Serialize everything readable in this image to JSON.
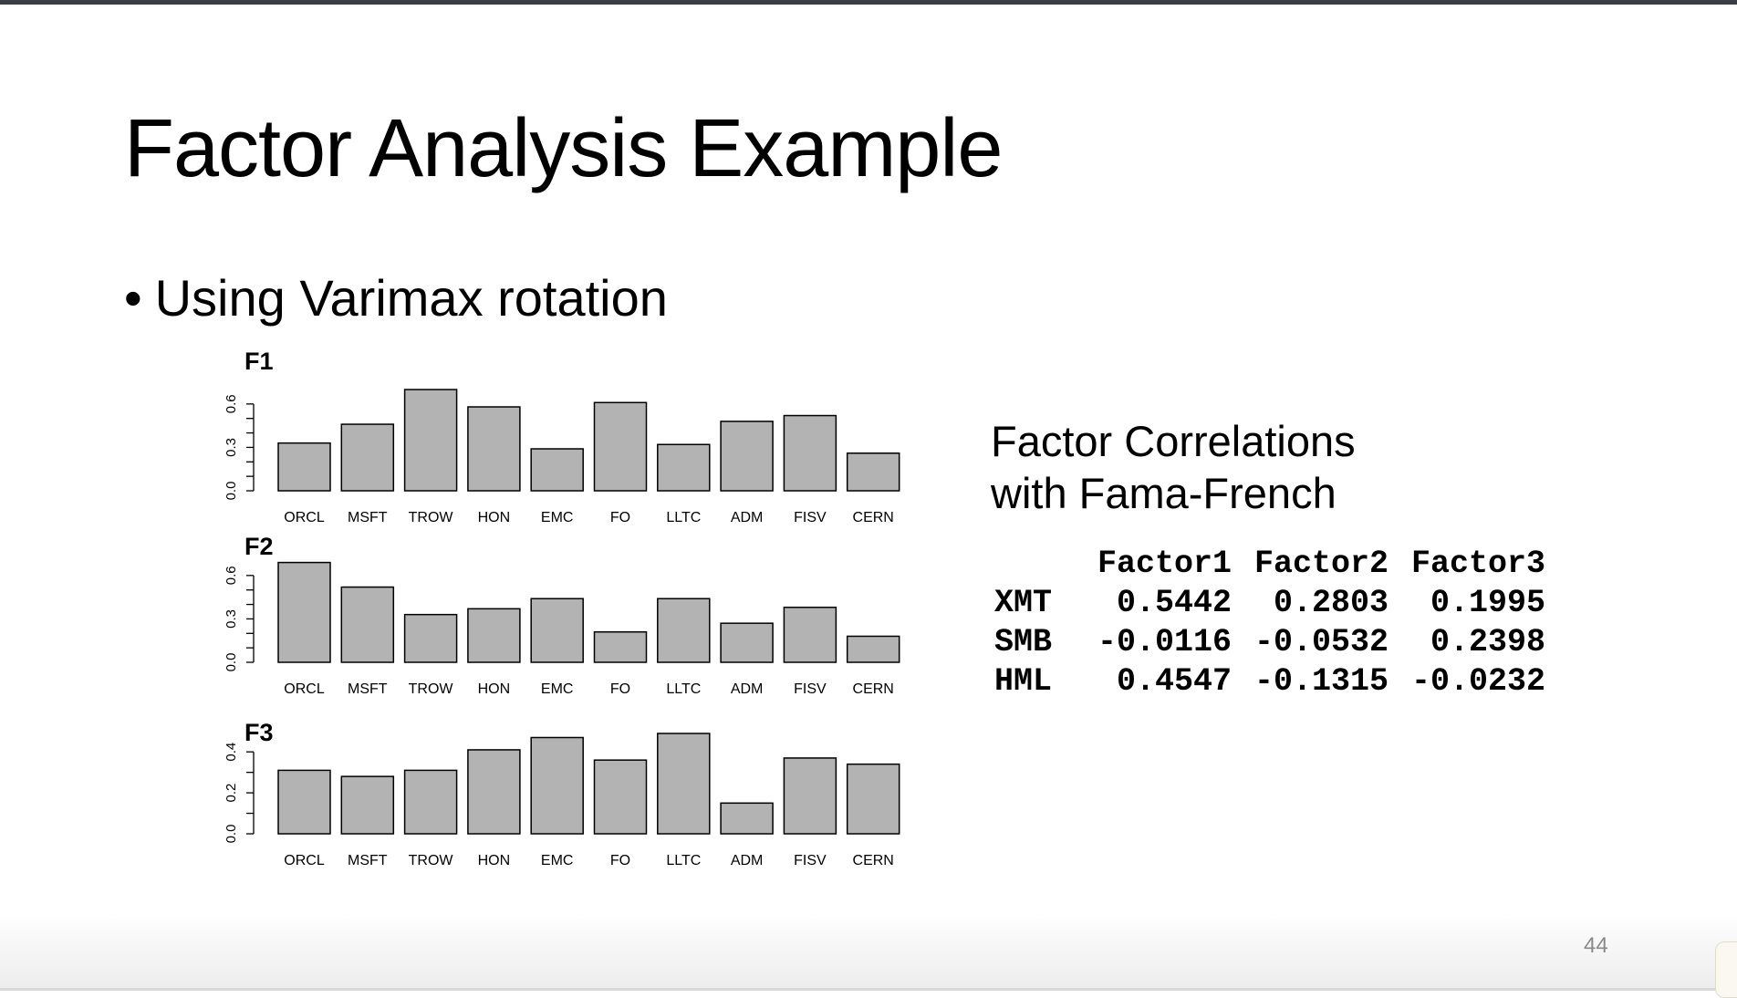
{
  "slide": {
    "title": "Factor Analysis Example",
    "bullet_symbol": "•",
    "bullet": "Using Varimax rotation",
    "page_number": "44"
  },
  "chart_data": [
    {
      "type": "bar",
      "title": "F1",
      "categories": [
        "ORCL",
        "MSFT",
        "TROW",
        "HON",
        "EMC",
        "FO",
        "LLTC",
        "ADM",
        "FISV",
        "CERN"
      ],
      "values": [
        0.33,
        0.46,
        0.7,
        0.58,
        0.29,
        0.61,
        0.32,
        0.48,
        0.52,
        0.26
      ],
      "ylim": [
        0,
        0.7
      ],
      "yticks": [
        0.0,
        0.3,
        0.6
      ],
      "ytick_labels": [
        "0.0",
        "0.3",
        "0.6"
      ],
      "minor_tick_step": 0.1,
      "bar_color": "#b3b3b3",
      "grid": false
    },
    {
      "type": "bar",
      "title": "F2",
      "categories": [
        "ORCL",
        "MSFT",
        "TROW",
        "HON",
        "EMC",
        "FO",
        "LLTC",
        "ADM",
        "FISV",
        "CERN"
      ],
      "values": [
        0.69,
        0.52,
        0.33,
        0.37,
        0.44,
        0.21,
        0.44,
        0.27,
        0.38,
        0.18
      ],
      "ylim": [
        0,
        0.7
      ],
      "yticks": [
        0.0,
        0.3,
        0.6
      ],
      "ytick_labels": [
        "0.0",
        "0.3",
        "0.6"
      ],
      "minor_tick_step": 0.1,
      "bar_color": "#b3b3b3",
      "grid": false
    },
    {
      "type": "bar",
      "title": "F3",
      "categories": [
        "ORCL",
        "MSFT",
        "TROW",
        "HON",
        "EMC",
        "FO",
        "LLTC",
        "ADM",
        "FISV",
        "CERN"
      ],
      "values": [
        0.31,
        0.28,
        0.31,
        0.41,
        0.47,
        0.36,
        0.49,
        0.15,
        0.37,
        0.34
      ],
      "ylim": [
        0,
        0.49
      ],
      "yticks": [
        0.0,
        0.2,
        0.4
      ],
      "ytick_labels": [
        "0.0",
        "0.2",
        "0.4"
      ],
      "minor_tick_step": 0.1,
      "bar_color": "#b3b3b3",
      "grid": false
    }
  ],
  "factor_correlations": {
    "heading_line1": "Factor Correlations",
    "heading_line2": "with Fama-French",
    "columns": [
      "Factor1",
      "Factor2",
      "Factor3"
    ],
    "rows": [
      {
        "name": "XMT",
        "values": [
          "0.5442",
          "0.2803",
          "0.1995"
        ]
      },
      {
        "name": "SMB",
        "values": [
          "-0.0116",
          "-0.0532",
          "0.2398"
        ]
      },
      {
        "name": "HML",
        "values": [
          "0.4547",
          "-0.1315",
          "-0.0232"
        ]
      }
    ]
  }
}
